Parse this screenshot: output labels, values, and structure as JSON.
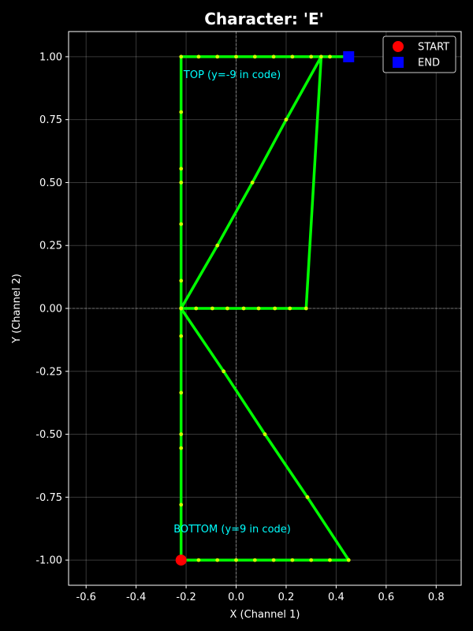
{
  "chart_data": {
    "type": "line",
    "title": "Character: 'E'",
    "xlabel": "X (Channel 1)",
    "ylabel": "Y (Channel 2)",
    "xlim": [
      -0.67,
      0.9
    ],
    "ylim": [
      -1.1,
      1.1
    ],
    "xticks": [
      -0.6,
      -0.4,
      -0.2,
      0.0,
      0.2,
      0.4,
      0.6,
      0.8
    ],
    "yticks": [
      -1.0,
      -0.75,
      -0.5,
      -0.25,
      0.0,
      0.25,
      0.5,
      0.75,
      1.0
    ],
    "grid": true,
    "legend_position": "top-right",
    "colors": {
      "background": "#000000",
      "trace": "#00ff00",
      "sample_point": "#ccff00",
      "start": "#ff0000",
      "end": "#0000ff",
      "annotation": "#00ffff",
      "text": "#ffffff"
    },
    "stroke_x": [
      0.45,
      0.375,
      0.3,
      0.225,
      0.15,
      0.075,
      0.0,
      -0.075,
      -0.15,
      -0.22,
      -0.22,
      -0.22,
      -0.22,
      -0.22,
      -0.22,
      -0.22,
      -0.075,
      0.065,
      0.2,
      0.34,
      0.28,
      0.215,
      0.155,
      0.09,
      0.03,
      -0.035,
      -0.095,
      -0.16,
      -0.22,
      -0.22,
      -0.22,
      -0.22,
      -0.22,
      -0.22,
      -0.22,
      -0.22,
      -0.05,
      0.115,
      0.285,
      0.45,
      0.375,
      0.3,
      0.225,
      0.15,
      0.075,
      0.0,
      -0.075,
      -0.15,
      -0.22
    ],
    "stroke_y": [
      1.0,
      1.0,
      1.0,
      1.0,
      1.0,
      1.0,
      1.0,
      1.0,
      1.0,
      1.0,
      0.78,
      0.555,
      0.5,
      0.335,
      0.11,
      0.0,
      0.25,
      0.5,
      0.75,
      1.0,
      0.0,
      0.0,
      0.0,
      0.0,
      0.0,
      0.0,
      0.0,
      0.0,
      0.0,
      -0.11,
      -0.335,
      -0.5,
      -0.555,
      -0.78,
      -1.0,
      0.0,
      -0.25,
      -0.5,
      -0.75,
      -1.0,
      -1.0,
      -1.0,
      -1.0,
      -1.0,
      -1.0,
      -1.0,
      -1.0,
      -1.0,
      -1.0
    ],
    "start": {
      "x": -0.22,
      "y": -1.0
    },
    "end": {
      "x": 0.45,
      "y": 1.0
    },
    "legend": [
      {
        "label": "START",
        "marker": "circle",
        "color": "#ff0000"
      },
      {
        "label": "END",
        "marker": "square",
        "color": "#0000ff"
      }
    ],
    "annotations": [
      {
        "text": "TOP (y=-9 in code)",
        "x": -0.21,
        "y": 0.915
      },
      {
        "text": "BOTTOM (y=9 in code)",
        "x": -0.25,
        "y": -0.89
      }
    ]
  }
}
